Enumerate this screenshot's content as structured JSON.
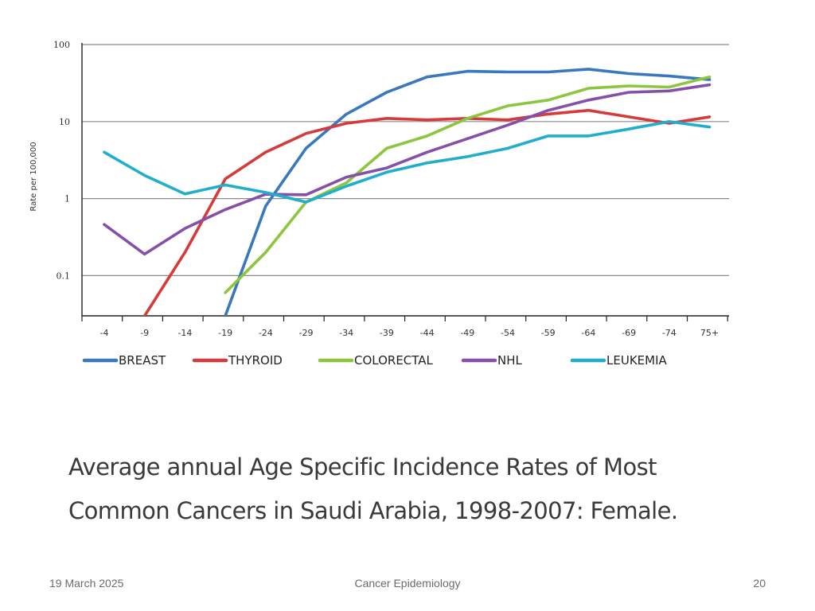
{
  "chart_data": {
    "type": "line",
    "title": "Average annual Age Specific Incidence Rates of Most Common Cancers in Saudi Arabia, 1998-2007: Female.",
    "xlabel": "",
    "ylabel": "Rate per 100,000",
    "yscale": "log",
    "ylim": [
      0.03,
      100
    ],
    "y_ticks": [
      100,
      10,
      1,
      0.1
    ],
    "y_tick_labels": [
      "100",
      "10",
      "1",
      "0.1"
    ],
    "categories": [
      "-4",
      "-9",
      "-14",
      "-19",
      "-24",
      "-29",
      "-34",
      "-39",
      "-44",
      "-49",
      "-54",
      "-59",
      "-64",
      "-69",
      "-74",
      "75+"
    ],
    "grid": true,
    "legend_position": "bottom",
    "series": [
      {
        "name": "BREAST",
        "color": "#3a78bd",
        "values": [
          null,
          null,
          null,
          0.03,
          0.8,
          4.5,
          12.5,
          24,
          38,
          45,
          44,
          44,
          48,
          42,
          39,
          35
        ]
      },
      {
        "name": "THYROID",
        "color": "#d63b3b",
        "values": [
          null,
          0.03,
          0.2,
          1.8,
          4,
          7,
          9.5,
          11,
          10.5,
          11,
          10.5,
          12.5,
          14,
          11.5,
          9.5,
          11.5
        ]
      },
      {
        "name": "COLORECTAL",
        "color": "#8cc63e",
        "values": [
          null,
          null,
          null,
          0.06,
          0.2,
          0.9,
          1.6,
          4.5,
          6.5,
          11,
          16,
          19,
          27,
          29,
          28,
          38
        ]
      },
      {
        "name": "NHL",
        "color": "#8650a8",
        "values": [
          0.46,
          0.19,
          0.41,
          0.72,
          1.14,
          1.12,
          1.9,
          2.5,
          4,
          6,
          9,
          14,
          19,
          24,
          25,
          30
        ]
      },
      {
        "name": "LEUKEMIA",
        "color": "#20aecc",
        "values": [
          4,
          2,
          1.15,
          1.5,
          1.2,
          0.9,
          1.45,
          2.2,
          2.9,
          3.5,
          4.5,
          6.5,
          6.5,
          8,
          10,
          8.5
        ]
      }
    ]
  },
  "footer": {
    "date": "19 March 2025",
    "title": "Cancer Epidemiology",
    "page": "20"
  }
}
